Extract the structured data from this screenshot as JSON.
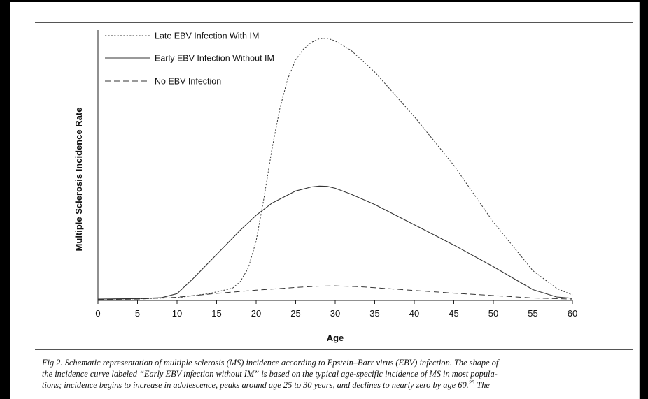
{
  "caption": {
    "line1": "Fig 2. Schematic representation of multiple sclerosis (MS) incidence according to Epstein–Barr virus (EBV) infection. The shape of",
    "line2": "the incidence curve labeled “Early EBV infection without IM” is based on the typical age-specific incidence of MS in most popula-",
    "line3": "tions; incidence begins to increase in adolescence, peaks around age 25 to 30 years, and declines to nearly zero by age 60.",
    "line3_sup": "25",
    "line3_tail": " The"
  },
  "chart_data": {
    "type": "line",
    "title": "",
    "xlabel": "Age",
    "ylabel": "Multiple Sclerosis Incidence Rate",
    "xlim": [
      0,
      60
    ],
    "ylim": [
      0,
      100
    ],
    "xticks": [
      "0",
      "5",
      "10",
      "15",
      "20",
      "25",
      "30",
      "35",
      "40",
      "45",
      "50",
      "55",
      "60"
    ],
    "yticks_shown": false,
    "grid": false,
    "legend_position": "top-left",
    "series": [
      {
        "name": "Late EBV Infection With IM",
        "style": "dotted",
        "x": [
          0,
          5,
          10,
          14,
          17,
          18,
          19,
          20,
          21,
          22,
          23,
          24,
          25,
          26,
          27,
          28,
          29,
          30,
          32,
          35,
          40,
          45,
          50,
          55,
          58,
          60
        ],
        "y": [
          0.5,
          0.6,
          1.0,
          2.5,
          4.5,
          7,
          12,
          22,
          38,
          56,
          71,
          82,
          89,
          93,
          95.5,
          96.8,
          97,
          96,
          92.5,
          84.5,
          68,
          50,
          29,
          11,
          4.5,
          2
        ]
      },
      {
        "name": "Early EBV Infection Without IM",
        "style": "solid",
        "x": [
          0,
          5,
          8,
          10,
          12,
          15,
          18,
          20,
          22,
          25,
          27,
          28,
          29,
          30,
          32,
          35,
          40,
          45,
          50,
          55,
          58,
          60
        ],
        "y": [
          0.5,
          0.7,
          1.0,
          2.5,
          8,
          17,
          26,
          31.5,
          36,
          40.5,
          42,
          42.3,
          42.2,
          41.5,
          39.3,
          35.5,
          28,
          20.5,
          12.5,
          4,
          1.3,
          0.8
        ]
      },
      {
        "name": "No EBV Infection",
        "style": "dashed",
        "x": [
          0,
          5,
          10,
          15,
          20,
          25,
          28,
          30,
          33,
          35,
          40,
          45,
          50,
          55,
          60
        ],
        "y": [
          0.3,
          0.5,
          1.2,
          2.6,
          3.8,
          4.8,
          5.3,
          5.4,
          5.1,
          4.7,
          3.7,
          2.7,
          1.8,
          0.9,
          0.5
        ]
      }
    ]
  }
}
